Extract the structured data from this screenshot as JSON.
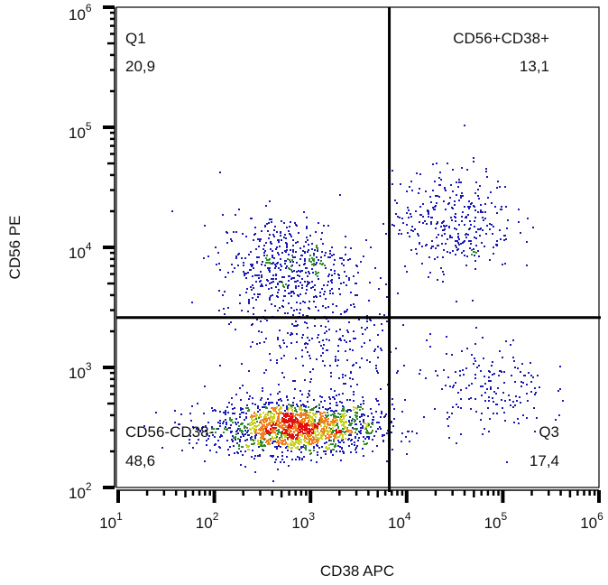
{
  "chart_data": {
    "type": "scatter",
    "subtype": "flow-cytometry-density-dot-plot",
    "xlabel": "CD38 APC",
    "ylabel": "CD56 PE",
    "x_scale": "log",
    "y_scale": "log",
    "xlim": [
      10,
      1000000
    ],
    "ylim": [
      100,
      1000000
    ],
    "x_ticks": [
      {
        "base": "10",
        "exp": "1"
      },
      {
        "base": "10",
        "exp": "2"
      },
      {
        "base": "10",
        "exp": "3"
      },
      {
        "base": "10",
        "exp": "4"
      },
      {
        "base": "10",
        "exp": "5"
      },
      {
        "base": "10",
        "exp": "6"
      }
    ],
    "y_ticks": [
      {
        "base": "10",
        "exp": "2"
      },
      {
        "base": "10",
        "exp": "3"
      },
      {
        "base": "10",
        "exp": "4"
      },
      {
        "base": "10",
        "exp": "5"
      },
      {
        "base": "10",
        "exp": "6"
      }
    ],
    "gate": {
      "x": 6600,
      "y": 2600
    },
    "quadrants": [
      {
        "name": "Q1",
        "percent": "20,9"
      },
      {
        "name": "CD56+CD38+",
        "percent": "13,1"
      },
      {
        "name": "CD56-CD38-",
        "percent": "48,6"
      },
      {
        "name": "Q3",
        "percent": "17,4"
      }
    ],
    "populations": [
      {
        "center": [
          700,
          320
        ],
        "log_spread": [
          0.42,
          0.11
        ],
        "events": 1700
      },
      {
        "center": [
          550,
          7000
        ],
        "log_spread": [
          0.35,
          0.22
        ],
        "events": 520
      },
      {
        "center": [
          30000,
          17000
        ],
        "log_spread": [
          0.32,
          0.22
        ],
        "events": 330
      },
      {
        "center": [
          70000,
          700
        ],
        "log_spread": [
          0.3,
          0.2
        ],
        "events": 170
      },
      {
        "center": [
          1500,
          1300
        ],
        "log_spread": [
          0.45,
          0.3
        ],
        "events": 260
      }
    ],
    "density_colors": [
      "#1a1ab4",
      "#2f8a2f",
      "#c8d020",
      "#f08020",
      "#e01010"
    ],
    "grid": false,
    "legend": "none"
  }
}
